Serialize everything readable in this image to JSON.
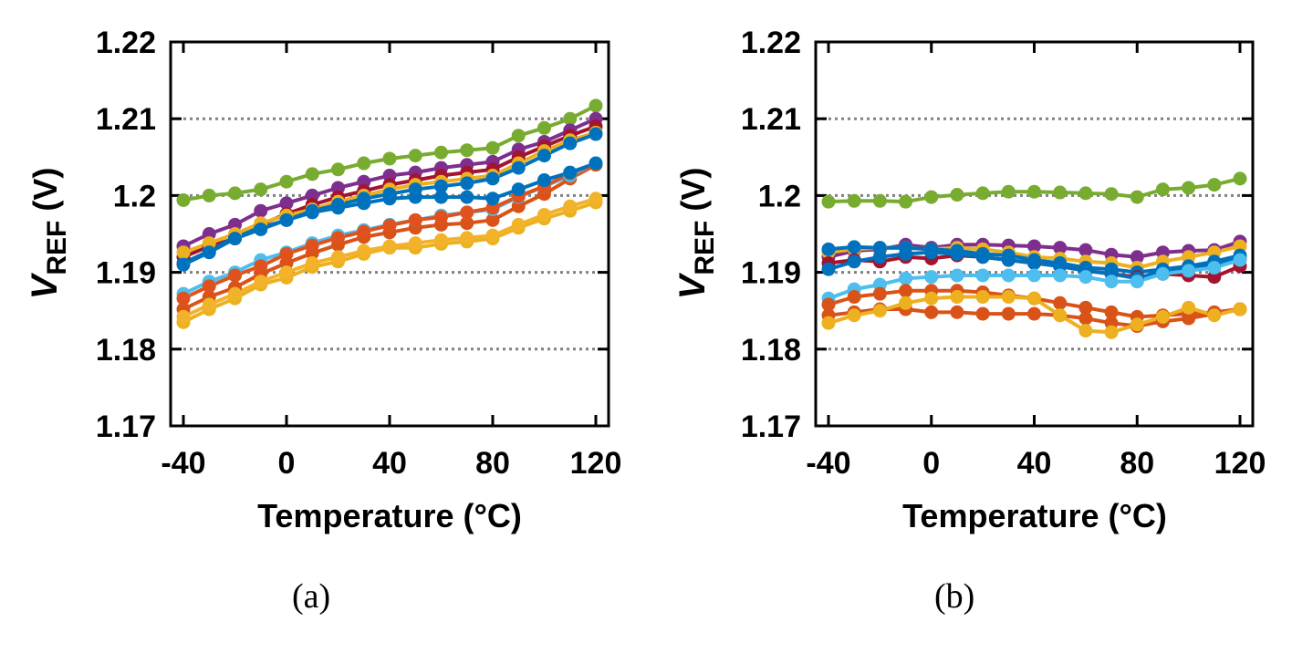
{
  "chart_data": [
    {
      "type": "line",
      "caption": "(a)",
      "xlabel": "Temperature (°C)",
      "ylabel_main": "V",
      "ylabel_sub": "REF",
      "ylabel_unit": " (V)",
      "xlim": [
        -40,
        120
      ],
      "ylim": [
        1.17,
        1.22
      ],
      "xticks": [
        -40,
        0,
        40,
        80,
        120
      ],
      "xtick_labels": [
        "-40",
        "0",
        "40",
        "80",
        "120"
      ],
      "yticks": [
        1.17,
        1.18,
        1.19,
        1.2,
        1.21,
        1.22
      ],
      "ytick_labels": [
        "1.17",
        "1.18",
        "1.19",
        "1.2",
        "1.21",
        "1.22"
      ],
      "grid_lines": [
        1.18,
        1.19,
        1.2,
        1.21
      ],
      "grid": "dotted-horizontal",
      "x": [
        -40,
        -30,
        -20,
        -10,
        0,
        10,
        20,
        30,
        40,
        50,
        60,
        70,
        80,
        90,
        100,
        110,
        120
      ],
      "series": [
        {
          "color": "#D95319",
          "values": [
            1.1852,
            1.1868,
            1.188,
            1.1898,
            1.1912,
            1.1925,
            1.1936,
            1.1946,
            1.1952,
            1.1958,
            1.1962,
            1.1964,
            1.1968,
            1.1986,
            1.2002,
            1.2022,
            1.204
          ]
        },
        {
          "color": "#EDB120",
          "values": [
            1.1835,
            1.1852,
            1.1866,
            1.1884,
            1.1893,
            1.1907,
            1.1914,
            1.1924,
            1.1932,
            1.1932,
            1.1937,
            1.194,
            1.1944,
            1.1958,
            1.197,
            1.198,
            1.1991
          ]
        },
        {
          "color": "#4DBEEE",
          "values": [
            1.1872,
            1.1888,
            1.19,
            1.1916,
            1.1926,
            1.1938,
            1.1948,
            1.1955,
            1.1962,
            1.1968,
            1.1974,
            1.1978,
            1.1982,
            1.1998,
            1.2012,
            1.2026,
            1.2042
          ]
        },
        {
          "color": "#E0521D",
          "values": [
            1.1866,
            1.1882,
            1.1896,
            1.1908,
            1.1924,
            1.1935,
            1.1945,
            1.1953,
            1.1961,
            1.1968,
            1.1972,
            1.1978,
            1.1984,
            1.1999,
            1.2012,
            1.2029,
            1.2041
          ]
        },
        {
          "color": "#F2B32B",
          "values": [
            1.1842,
            1.1858,
            1.1872,
            1.1888,
            1.19,
            1.1912,
            1.192,
            1.1928,
            1.1934,
            1.1938,
            1.1942,
            1.1945,
            1.1948,
            1.1962,
            1.1975,
            1.1986,
            1.1996
          ]
        },
        {
          "color": "#77AC30",
          "values": [
            1.1994,
            1.2,
            1.2003,
            1.2008,
            1.2018,
            1.2028,
            1.2034,
            1.2042,
            1.2048,
            1.2052,
            1.2056,
            1.2059,
            1.2062,
            1.2078,
            1.2088,
            1.21,
            1.2117
          ]
        },
        {
          "color": "#7E2F8E",
          "values": [
            1.1934,
            1.195,
            1.1962,
            1.198,
            1.199,
            1.2,
            1.201,
            1.2018,
            1.2026,
            1.203,
            1.2036,
            1.204,
            1.2044,
            1.206,
            1.207,
            1.2085,
            1.21
          ]
        },
        {
          "color": "#A2142F",
          "values": [
            1.192,
            1.1934,
            1.1944,
            1.1962,
            1.1976,
            1.1988,
            1.1998,
            1.2006,
            1.2014,
            1.202,
            1.2026,
            1.203,
            1.2034,
            1.205,
            1.2064,
            1.2078,
            1.209
          ]
        },
        {
          "color": "#0072BD",
          "values": [
            1.1912,
            1.1928,
            1.1946,
            1.1958,
            1.1968,
            1.1978,
            1.1984,
            1.199,
            1.1996,
            1.1998,
            1.1998,
            1.1998,
            1.1996,
            1.2008,
            1.202,
            1.203,
            1.2042
          ]
        },
        {
          "color": "#EDB120",
          "values": [
            1.1926,
            1.1938,
            1.195,
            1.1964,
            1.1974,
            1.1982,
            1.1992,
            1.2,
            1.2008,
            1.2014,
            1.2018,
            1.2022,
            1.2026,
            1.2042,
            1.2058,
            1.2072,
            1.2082
          ]
        },
        {
          "color": "#0072BD",
          "values": [
            1.191,
            1.1926,
            1.1944,
            1.1956,
            1.1968,
            1.198,
            1.1988,
            1.1996,
            1.2002,
            1.2008,
            1.2012,
            1.2016,
            1.2022,
            1.2036,
            1.2052,
            1.2068,
            1.208
          ]
        }
      ]
    },
    {
      "type": "line",
      "caption": "(b)",
      "xlabel": "Temperature (°C)",
      "ylabel_main": "V",
      "ylabel_sub": "REF",
      "ylabel_unit": " (V)",
      "xlim": [
        -40,
        120
      ],
      "ylim": [
        1.17,
        1.22
      ],
      "xticks": [
        -40,
        0,
        40,
        80,
        120
      ],
      "xtick_labels": [
        "-40",
        "0",
        "40",
        "80",
        "120"
      ],
      "yticks": [
        1.17,
        1.18,
        1.19,
        1.2,
        1.21,
        1.22
      ],
      "ytick_labels": [
        "1.17",
        "1.18",
        "1.19",
        "1.2",
        "1.21",
        "1.22"
      ],
      "grid_lines": [
        1.18,
        1.19,
        1.2,
        1.21
      ],
      "grid": "dotted-horizontal",
      "x": [
        -40,
        -30,
        -20,
        -10,
        0,
        10,
        20,
        30,
        40,
        50,
        60,
        70,
        80,
        90,
        100,
        110,
        120
      ],
      "series": [
        {
          "color": "#77AC30",
          "values": [
            1.1992,
            1.1993,
            1.1993,
            1.1992,
            1.1998,
            1.2001,
            1.2003,
            1.2005,
            1.2005,
            1.2004,
            1.2003,
            1.2002,
            1.1998,
            1.2008,
            1.201,
            1.2014,
            1.2022
          ]
        },
        {
          "color": "#7E2F8E",
          "values": [
            1.192,
            1.1928,
            1.193,
            1.1936,
            1.1932,
            1.1936,
            1.1936,
            1.1935,
            1.1934,
            1.1932,
            1.1929,
            1.1923,
            1.192,
            1.1926,
            1.1928,
            1.1929,
            1.194
          ]
        },
        {
          "color": "#EDB120",
          "values": [
            1.1926,
            1.193,
            1.1932,
            1.1932,
            1.193,
            1.1932,
            1.193,
            1.1926,
            1.192,
            1.1918,
            1.1914,
            1.1912,
            1.1906,
            1.1914,
            1.192,
            1.1926,
            1.1934
          ]
        },
        {
          "color": "#0072BD",
          "values": [
            1.193,
            1.1933,
            1.1932,
            1.1932,
            1.193,
            1.1928,
            1.1924,
            1.1922,
            1.1916,
            1.1912,
            1.1906,
            1.1904,
            1.19,
            1.1904,
            1.1908,
            1.1914,
            1.1922
          ]
        },
        {
          "color": "#A2142F",
          "values": [
            1.1912,
            1.1916,
            1.1914,
            1.192,
            1.1918,
            1.1922,
            1.192,
            1.1916,
            1.1912,
            1.1908,
            1.1902,
            1.1898,
            1.1894,
            1.1898,
            1.1896,
            1.1894,
            1.1908
          ]
        },
        {
          "color": "#0072BD",
          "values": [
            1.1904,
            1.1914,
            1.192,
            1.1924,
            1.1926,
            1.1924,
            1.192,
            1.1916,
            1.1912,
            1.1908,
            1.1902,
            1.1898,
            1.1892,
            1.1902,
            1.1904,
            1.1912,
            1.1918
          ]
        },
        {
          "color": "#4DBEEE",
          "values": [
            1.1866,
            1.1878,
            1.1884,
            1.1892,
            1.1894,
            1.1896,
            1.1896,
            1.1896,
            1.1896,
            1.1896,
            1.1894,
            1.1888,
            1.1888,
            1.1898,
            1.1902,
            1.1906,
            1.1916
          ]
        },
        {
          "color": "#D95319",
          "values": [
            1.1858,
            1.1868,
            1.1872,
            1.1876,
            1.1876,
            1.1876,
            1.1874,
            1.187,
            1.1866,
            1.186,
            1.1854,
            1.1848,
            1.1842,
            1.1844,
            1.1846,
            1.1848,
            1.1852
          ]
        },
        {
          "color": "#D95319",
          "values": [
            1.1844,
            1.1848,
            1.1852,
            1.1852,
            1.1848,
            1.1848,
            1.1846,
            1.1846,
            1.1846,
            1.1844,
            1.184,
            1.1834,
            1.183,
            1.1836,
            1.184,
            1.1846,
            1.1852
          ]
        },
        {
          "color": "#EDB120",
          "values": [
            1.1834,
            1.1844,
            1.185,
            1.186,
            1.1866,
            1.1868,
            1.1868,
            1.1868,
            1.1866,
            1.1844,
            1.1824,
            1.1822,
            1.1832,
            1.1842,
            1.1854,
            1.1844,
            1.1852
          ]
        }
      ]
    }
  ]
}
